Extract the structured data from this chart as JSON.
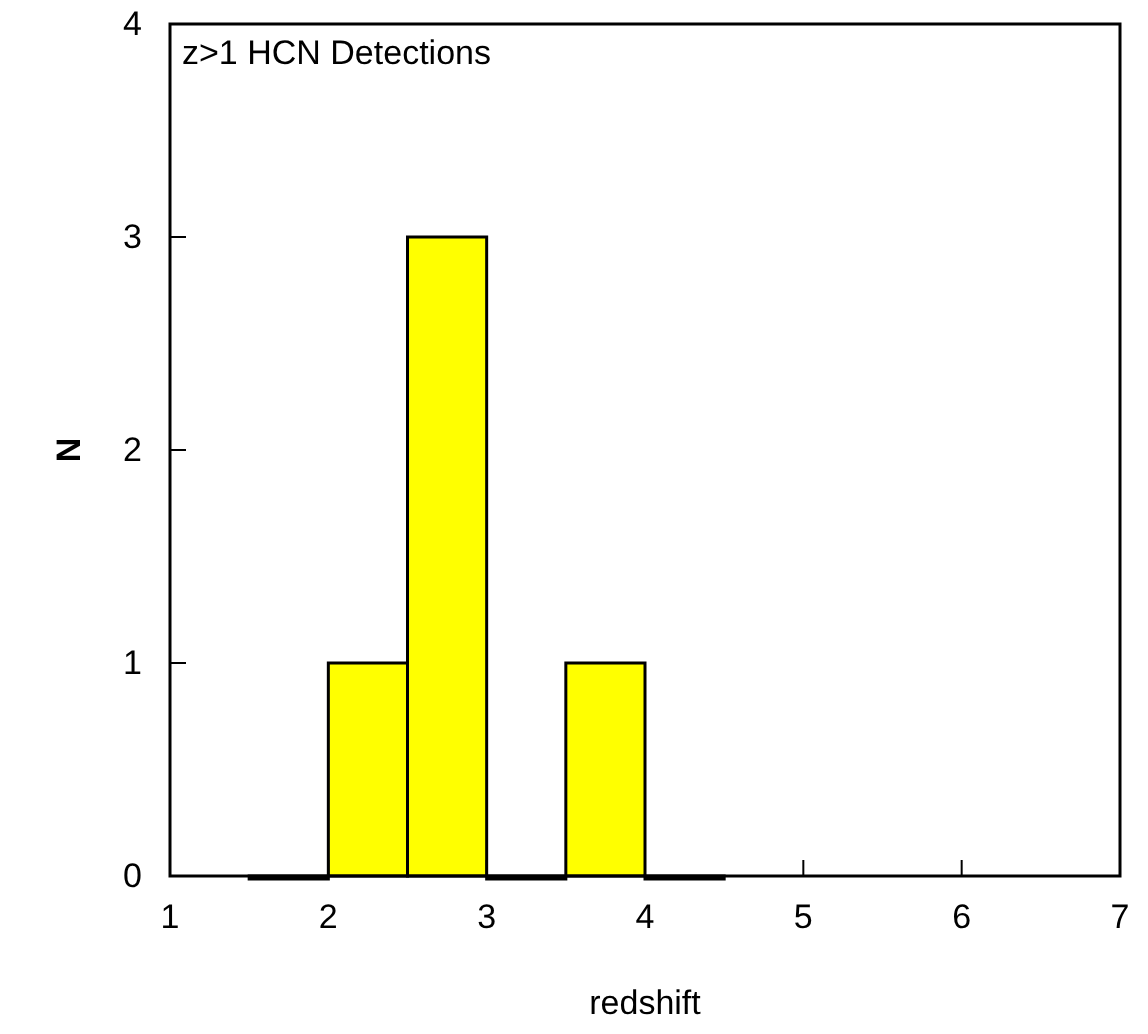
{
  "chart_data": {
    "type": "histogram",
    "title": "z>1 HCN Detections",
    "xlabel": "redshift",
    "ylabel": "N",
    "bins": [
      1.5,
      2,
      2.5,
      3,
      3.5,
      4,
      4.5
    ],
    "values": [
      0,
      1,
      3,
      0,
      1,
      0
    ],
    "color": "#ffff00",
    "xlim": [
      1,
      7
    ],
    "xticks": [
      1,
      2,
      3,
      4,
      5,
      6,
      7
    ],
    "ylim": [
      0,
      4
    ],
    "yticks": [
      0,
      1,
      2,
      3,
      4
    ],
    "grid": false
  }
}
